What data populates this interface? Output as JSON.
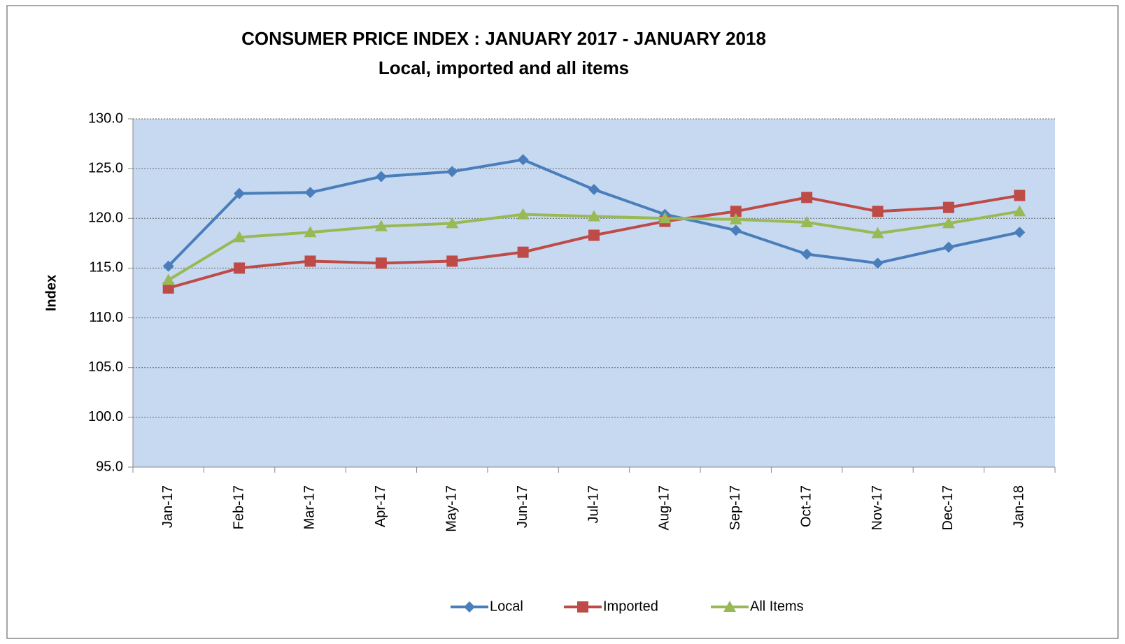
{
  "chart_data": {
    "type": "line",
    "title": "CONSUMER PRICE INDEX : JANUARY 2017 - JANUARY 2018",
    "subtitle": "Local, imported and all items",
    "y_label": "Index",
    "categories": [
      "Jan-17",
      "Feb-17",
      "Mar-17",
      "Apr-17",
      "May-17",
      "Jun-17",
      "Jul-17",
      "Aug-17",
      "Sep-17",
      "Oct-17",
      "Nov-17",
      "Dec-17",
      "Jan-18"
    ],
    "series": [
      {
        "name": "Local",
        "color": "#4a7ebb",
        "marker": "diamond",
        "values": [
          115.2,
          122.5,
          122.6,
          124.2,
          124.7,
          125.9,
          122.9,
          120.4,
          118.8,
          116.4,
          115.5,
          117.1,
          118.6
        ]
      },
      {
        "name": "Imported",
        "color": "#be4b48",
        "marker": "square",
        "values": [
          113.0,
          115.0,
          115.7,
          115.5,
          115.7,
          116.6,
          118.3,
          119.7,
          120.7,
          122.1,
          120.7,
          121.1,
          122.3
        ]
      },
      {
        "name": "All Items",
        "color": "#98b954",
        "marker": "triangle",
        "values": [
          113.8,
          118.1,
          118.6,
          119.2,
          119.5,
          120.4,
          120.2,
          120.0,
          119.9,
          119.6,
          118.5,
          119.5,
          120.7
        ]
      }
    ],
    "ylim": [
      95,
      130
    ],
    "yticks": [
      {
        "value": 95,
        "label": "95.0"
      },
      {
        "value": 100,
        "label": "100.0"
      },
      {
        "value": 105,
        "label": "105.0"
      },
      {
        "value": 110,
        "label": "110.0"
      },
      {
        "value": 115,
        "label": "115.0"
      },
      {
        "value": 120,
        "label": "120.0"
      },
      {
        "value": 125,
        "label": "125.0"
      },
      {
        "value": 130,
        "label": "130.0"
      }
    ],
    "grid": true,
    "legend": "bottom",
    "plot_background": "#c6d9f1"
  }
}
